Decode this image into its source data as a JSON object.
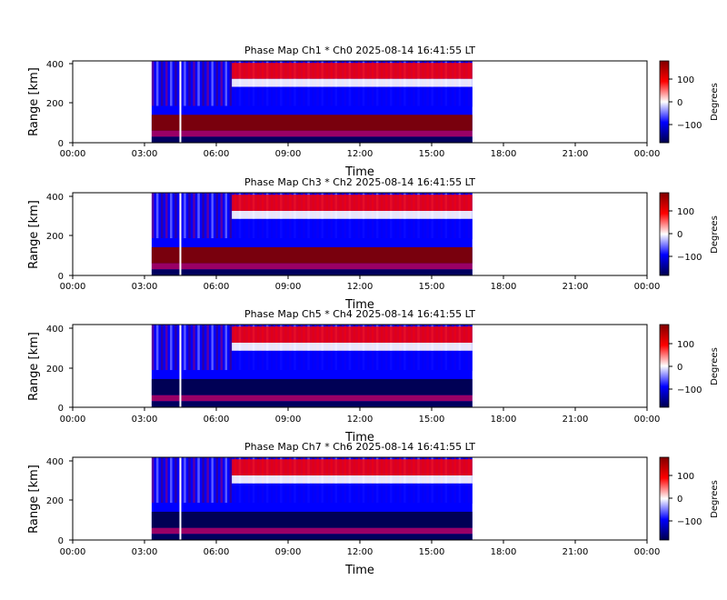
{
  "figure": {
    "charts_count": 4
  },
  "chart_data": [
    {
      "type": "heatmap",
      "title": "Phase Map Ch1 * Ch0 2025-08-14 16:41:55 LT",
      "xlabel": "Time",
      "ylabel": "Range [km]",
      "x_ticks": [
        "00:00",
        "03:00",
        "06:00",
        "09:00",
        "12:00",
        "15:00",
        "18:00",
        "21:00",
        "00:00"
      ],
      "y_ticks": [
        "0",
        "200",
        "400"
      ],
      "ylim": [
        0,
        410
      ],
      "data_x_range_hours": [
        3.3,
        16.7
      ],
      "gap_at_hours": 4.5,
      "upper_band_pattern": "red_over_blue",
      "lower_band_color": "red",
      "colorbar": {
        "label": "Degrees",
        "ticks": [
          "100",
          "0",
          "−100"
        ],
        "range": [
          -180,
          180
        ],
        "colormap": "seismic"
      }
    },
    {
      "type": "heatmap",
      "title": "Phase Map Ch3 * Ch2 2025-08-14 16:41:55 LT",
      "xlabel": "Time",
      "ylabel": "Range [km]",
      "x_ticks": [
        "00:00",
        "03:00",
        "06:00",
        "09:00",
        "12:00",
        "15:00",
        "18:00",
        "21:00",
        "00:00"
      ],
      "y_ticks": [
        "0",
        "200",
        "400"
      ],
      "ylim": [
        0,
        410
      ],
      "data_x_range_hours": [
        3.3,
        16.7
      ],
      "gap_at_hours": 4.5,
      "upper_band_pattern": "red_over_blue",
      "lower_band_color": "red",
      "colorbar": {
        "label": "Degrees",
        "ticks": [
          "100",
          "0",
          "−100"
        ],
        "range": [
          -180,
          180
        ],
        "colormap": "seismic"
      }
    },
    {
      "type": "heatmap",
      "title": "Phase Map Ch5 * Ch4 2025-08-14 16:41:55 LT",
      "xlabel": "Time",
      "ylabel": "Range [km]",
      "x_ticks": [
        "00:00",
        "03:00",
        "06:00",
        "09:00",
        "12:00",
        "15:00",
        "18:00",
        "21:00",
        "00:00"
      ],
      "y_ticks": [
        "0",
        "200",
        "400"
      ],
      "ylim": [
        0,
        410
      ],
      "data_x_range_hours": [
        3.3,
        16.7
      ],
      "gap_at_hours": 4.5,
      "upper_band_pattern": "red_over_blue",
      "lower_band_color": "navy",
      "colorbar": {
        "label": "Degrees",
        "ticks": [
          "100",
          "0",
          "−100"
        ],
        "range": [
          -180,
          180
        ],
        "colormap": "seismic"
      }
    },
    {
      "type": "heatmap",
      "title": "Phase Map Ch7 * Ch6 2025-08-14 16:41:55 LT",
      "xlabel": "Time",
      "ylabel": "Range [km]",
      "x_ticks": [
        "00:00",
        "03:00",
        "06:00",
        "09:00",
        "12:00",
        "15:00",
        "18:00",
        "21:00",
        "00:00"
      ],
      "y_ticks": [
        "0",
        "200",
        "400"
      ],
      "ylim": [
        0,
        410
      ],
      "data_x_range_hours": [
        3.3,
        16.7
      ],
      "gap_at_hours": 4.5,
      "upper_band_pattern": "red_over_blue",
      "lower_band_color": "navy",
      "colorbar": {
        "label": "Degrees",
        "ticks": [
          "100",
          "0",
          "−100"
        ],
        "range": [
          -180,
          180
        ],
        "colormap": "seismic"
      }
    }
  ],
  "colors": {
    "cmap_low": "#00004c",
    "cmap_blue": "#0000ff",
    "cmap_mid": "#ffffff",
    "cmap_red": "#ff0000",
    "cmap_high": "#800000"
  }
}
